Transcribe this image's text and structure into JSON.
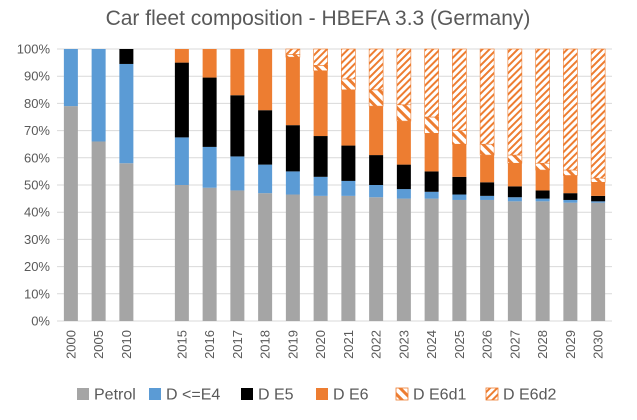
{
  "chart_data": {
    "type": "bar",
    "stacked": true,
    "percent": true,
    "title": "Car fleet composition - HBEFA 3.3 (Germany)",
    "categories": [
      "2000",
      "2005",
      "2010",
      "",
      "2015",
      "2016",
      "2017",
      "2018",
      "2019",
      "2020",
      "2021",
      "2022",
      "2023",
      "2024",
      "2025",
      "2026",
      "2027",
      "2028",
      "2029",
      "2030"
    ],
    "ylim": [
      0,
      100
    ],
    "yticks": [
      "0%",
      "10%",
      "20%",
      "30%",
      "40%",
      "50%",
      "60%",
      "70%",
      "80%",
      "90%",
      "100%"
    ],
    "grid": true,
    "legend_position": "bottom",
    "series": [
      {
        "name": "Petrol",
        "color": "#a5a5a5",
        "pattern": "solid",
        "values": [
          79,
          66,
          58,
          null,
          50,
          49,
          48,
          47,
          46.5,
          46,
          46,
          45.5,
          45,
          45,
          44.5,
          44.5,
          44,
          44,
          43.5,
          43.5
        ]
      },
      {
        "name": "D <=E4",
        "color": "#5b9bd5",
        "pattern": "solid",
        "values": [
          21,
          34,
          36.5,
          null,
          17.5,
          15,
          12.5,
          10.5,
          8.5,
          7,
          5.5,
          4.5,
          3.5,
          2.5,
          2,
          1.5,
          1.5,
          1,
          1,
          0.5
        ]
      },
      {
        "name": "D E5",
        "color": "#000000",
        "pattern": "solid",
        "values": [
          0,
          0,
          5.5,
          null,
          27.5,
          25.5,
          22.5,
          20,
          17,
          15,
          13,
          11,
          9,
          7.5,
          6.5,
          5,
          4,
          3,
          2.5,
          2
        ]
      },
      {
        "name": "D E6",
        "color": "#ed7d31",
        "pattern": "solid",
        "values": [
          0,
          0,
          0,
          null,
          5,
          10.5,
          17,
          22.5,
          25,
          24,
          20.5,
          18,
          16,
          14,
          12,
          10,
          8.5,
          7.5,
          6.5,
          5
        ]
      },
      {
        "name": "D E6d1",
        "color": "#ed7d31",
        "pattern": "hatch",
        "values": [
          0,
          0,
          0,
          null,
          0,
          0,
          0,
          0,
          1,
          2,
          4,
          6,
          6,
          6,
          5,
          4,
          3,
          2.5,
          2,
          1.5
        ]
      },
      {
        "name": "D E6d2",
        "color": "#ed7d31",
        "pattern": "hatch-dense",
        "values": [
          0,
          0,
          0,
          null,
          0,
          0,
          0,
          0,
          2,
          6,
          11,
          15,
          20.5,
          25,
          30,
          35,
          39,
          42,
          44.5,
          47.5
        ]
      }
    ]
  }
}
